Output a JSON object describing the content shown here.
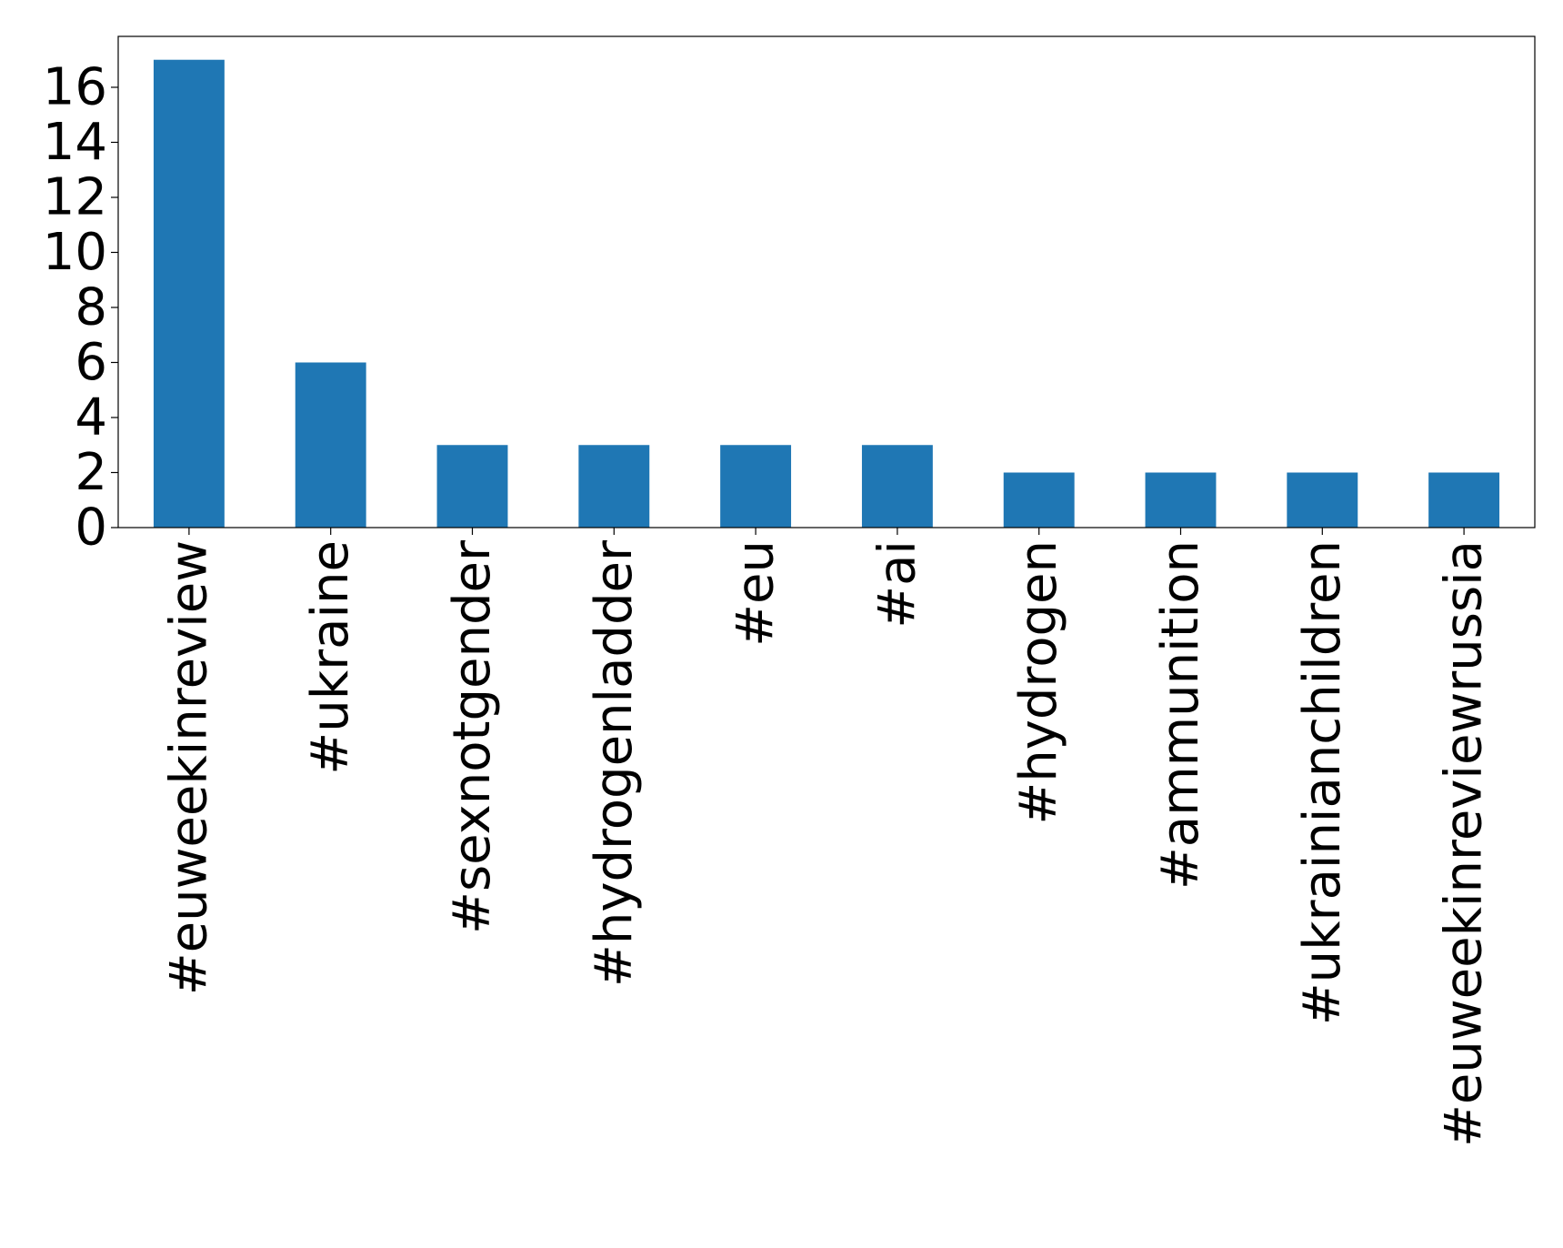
{
  "chart_data": {
    "type": "bar",
    "categories": [
      "#euweekinreview",
      "#ukraine",
      "#sexnotgender",
      "#hydrogenladder",
      "#eu",
      "#ai",
      "#hydrogen",
      "#ammunition",
      "#ukrainianchildren",
      "#euweekinreviewrussia"
    ],
    "values": [
      17,
      6,
      3,
      3,
      3,
      3,
      2,
      2,
      2,
      2
    ],
    "ylim": [
      0,
      17.85
    ],
    "yticks": [
      0,
      2,
      4,
      6,
      8,
      10,
      12,
      14,
      16
    ],
    "ytick_labels": [
      "0",
      "2",
      "4",
      "6",
      "8",
      "10",
      "12",
      "14",
      "16"
    ],
    "xlabel": "",
    "ylabel": "",
    "title": "",
    "grid": false,
    "legend": "none",
    "bar_color": "#1f77b4"
  }
}
